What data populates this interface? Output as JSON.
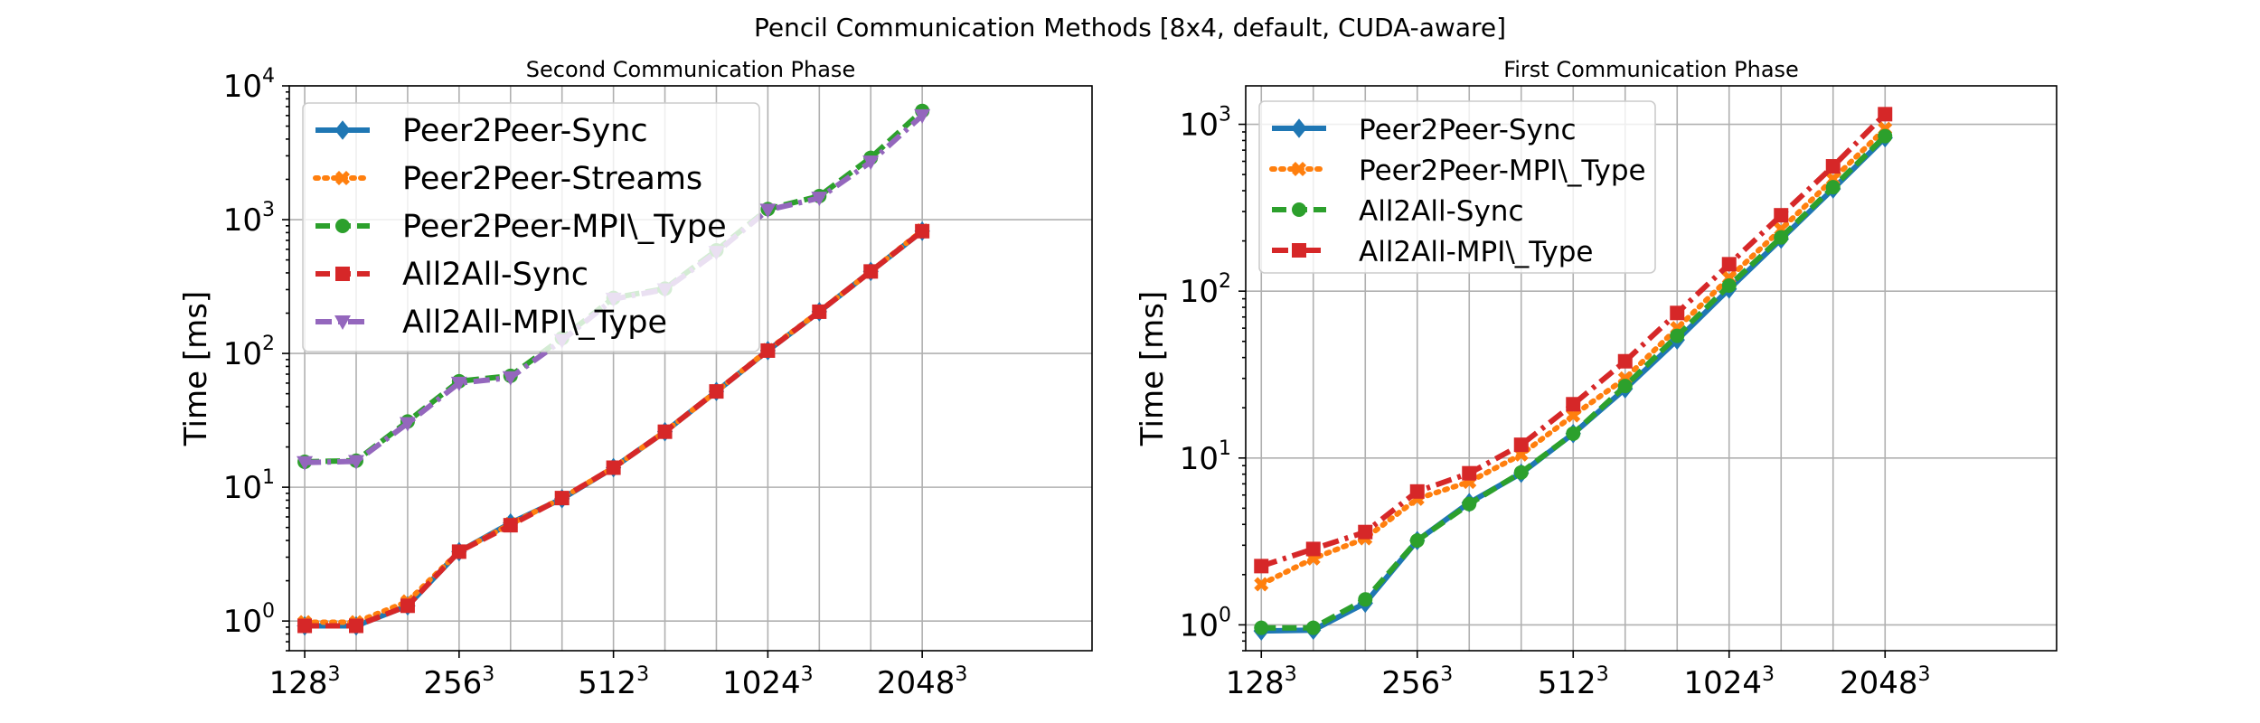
{
  "title": "Pencil Communication Methods [8x4, default, CUDA-aware]",
  "chart_data": [
    {
      "type": "line",
      "title": "Second Communication Phase",
      "xlabel": "",
      "ylabel": "Time [ms]",
      "yscale": "log",
      "ylim": [
        0.6,
        10000
      ],
      "xlim": [
        -0.3,
        15.3
      ],
      "grid": true,
      "legend_position": "top-left",
      "x_tick_labels": [
        {
          "base": "128",
          "exp": "3"
        },
        {
          "base": "256",
          "exp": "3"
        },
        {
          "base": "512",
          "exp": "3"
        },
        {
          "base": "1024",
          "exp": "3"
        },
        {
          "base": "2048",
          "exp": "3"
        }
      ],
      "y_tick_labels": [
        {
          "base": "10",
          "exp": "0"
        },
        {
          "base": "10",
          "exp": "1"
        },
        {
          "base": "10",
          "exp": "2"
        },
        {
          "base": "10",
          "exp": "3"
        },
        {
          "base": "10",
          "exp": "4"
        }
      ],
      "series": [
        {
          "name": "Peer2Peer-Sync",
          "color": "#1f77b4",
          "dash": "solid",
          "marker": "diamond",
          "values": [
            0.92,
            0.92,
            1.3,
            3.3,
            5.4,
            8.2,
            14,
            26,
            52,
            105,
            205,
            410,
            820
          ]
        },
        {
          "name": "Peer2Peer-Streams",
          "color": "#ff7f0e",
          "dash": "dotted",
          "marker": "x",
          "values": [
            0.98,
            0.98,
            1.4,
            3.3,
            5.3,
            8.3,
            14,
            26,
            52,
            106,
            206,
            410,
            830
          ]
        },
        {
          "name": "Peer2Peer-MPI\\_Type",
          "color": "#2ca02c",
          "dash": "dashed",
          "marker": "circle",
          "values": [
            15.5,
            15.8,
            31,
            62,
            68,
            130,
            260,
            305,
            590,
            1200,
            1500,
            2900,
            6500
          ]
        },
        {
          "name": "All2All-Sync",
          "color": "#d62728",
          "dash": "dashed",
          "marker": "square",
          "values": [
            0.92,
            0.92,
            1.3,
            3.3,
            5.2,
            8.3,
            14,
            26,
            52,
            105,
            205,
            410,
            820
          ]
        },
        {
          "name": "All2All-MPI\\_Type",
          "color": "#9467bd",
          "dash": "dashdot",
          "marker": "triangle-down",
          "values": [
            15.3,
            15.6,
            30,
            60,
            66,
            125,
            255,
            300,
            570,
            1180,
            1450,
            2700,
            6000
          ]
        }
      ]
    },
    {
      "type": "line",
      "title": "First Communication Phase",
      "xlabel": "",
      "ylabel": "Time [ms]",
      "yscale": "log",
      "ylim": [
        0.7,
        1700
      ],
      "xlim": [
        -0.3,
        15.3
      ],
      "grid": true,
      "legend_position": "top-left",
      "x_tick_labels": [
        {
          "base": "128",
          "exp": "3"
        },
        {
          "base": "256",
          "exp": "3"
        },
        {
          "base": "512",
          "exp": "3"
        },
        {
          "base": "1024",
          "exp": "3"
        },
        {
          "base": "2048",
          "exp": "3"
        }
      ],
      "y_tick_labels": [
        {
          "base": "10",
          "exp": "0"
        },
        {
          "base": "10",
          "exp": "1"
        },
        {
          "base": "10",
          "exp": "2"
        },
        {
          "base": "10",
          "exp": "3"
        }
      ],
      "series": [
        {
          "name": "Peer2Peer-Sync",
          "color": "#1f77b4",
          "dash": "solid",
          "marker": "diamond",
          "values": [
            0.92,
            0.93,
            1.35,
            3.2,
            5.4,
            8.1,
            14,
            26,
            51,
            103,
            205,
            410,
            830
          ]
        },
        {
          "name": "Peer2Peer-MPI\\_Type",
          "color": "#ff7f0e",
          "dash": "dotted",
          "marker": "x",
          "values": [
            1.75,
            2.5,
            3.3,
            5.7,
            7.2,
            10.5,
            18,
            30,
            60,
            120,
            235,
            470,
            940
          ]
        },
        {
          "name": "All2All-Sync",
          "color": "#2ca02c",
          "dash": "dashed",
          "marker": "circle",
          "values": [
            0.96,
            0.96,
            1.42,
            3.2,
            5.3,
            8.2,
            14,
            27,
            54,
            108,
            210,
            420,
            850
          ]
        },
        {
          "name": "All2All-MPI\\_Type",
          "color": "#d62728",
          "dash": "dashdot",
          "marker": "square",
          "values": [
            2.25,
            2.85,
            3.6,
            6.3,
            8.1,
            12,
            21,
            38,
            74,
            145,
            285,
            560,
            1150
          ]
        }
      ]
    }
  ]
}
